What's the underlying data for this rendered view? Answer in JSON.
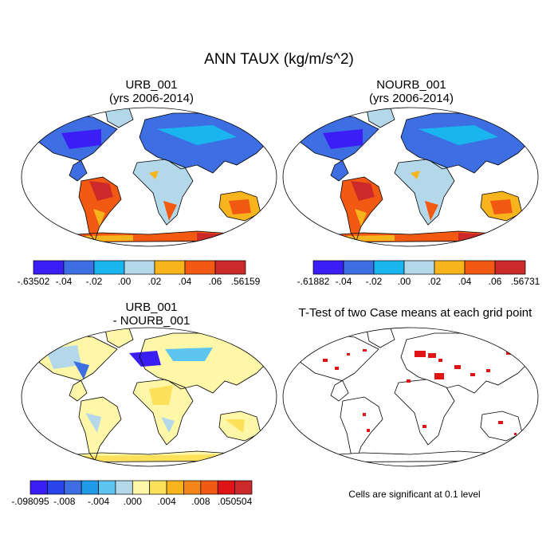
{
  "main_title": "ANN TAUX (kg/m/s^2)",
  "panels": {
    "urb": {
      "title_line1": "URB_001",
      "title_line2": "(yrs 2006-2014)"
    },
    "nourb": {
      "title_line1": "NOURB_001",
      "title_line2": "(yrs 2006-2014)"
    },
    "diff": {
      "title_line1": "URB_001",
      "title_line2": "- NOURB_001"
    },
    "ttest": {
      "title": "T-Test of two Case means at each grid point",
      "note": "Cells are significant at 0.1 level"
    }
  },
  "colorbars": {
    "urb": {
      "colors": [
        "#3b1df5",
        "#3d6fe3",
        "#1ab5ef",
        "#b3d8ea",
        "#f7b41c",
        "#f25a14",
        "#cc2a2a"
      ],
      "labels": [
        "-.63502",
        "-.04",
        "-.02",
        ".00",
        ".02",
        ".04",
        ".06",
        ".56159"
      ]
    },
    "nourb": {
      "colors": [
        "#3b1df5",
        "#3d6fe3",
        "#1ab5ef",
        "#b3d8ea",
        "#f7b41c",
        "#f25a14",
        "#cc2a2a"
      ],
      "labels": [
        "-.61882",
        "-.04",
        "-.02",
        ".00",
        ".02",
        ".04",
        ".06",
        ".56731"
      ]
    },
    "diff": {
      "colors": [
        "#3b1df5",
        "#2a45ec",
        "#3d6fe3",
        "#1f9be8",
        "#5ec5f0",
        "#b3d8ea",
        "#fff7a8",
        "#fde15a",
        "#f7b41c",
        "#f2861a",
        "#f25a14",
        "#e01414",
        "#cc2a2a"
      ],
      "labels": [
        "-.098095",
        "-.008",
        "-.004",
        ".000",
        ".004",
        ".008",
        ".050504"
      ]
    }
  }
}
